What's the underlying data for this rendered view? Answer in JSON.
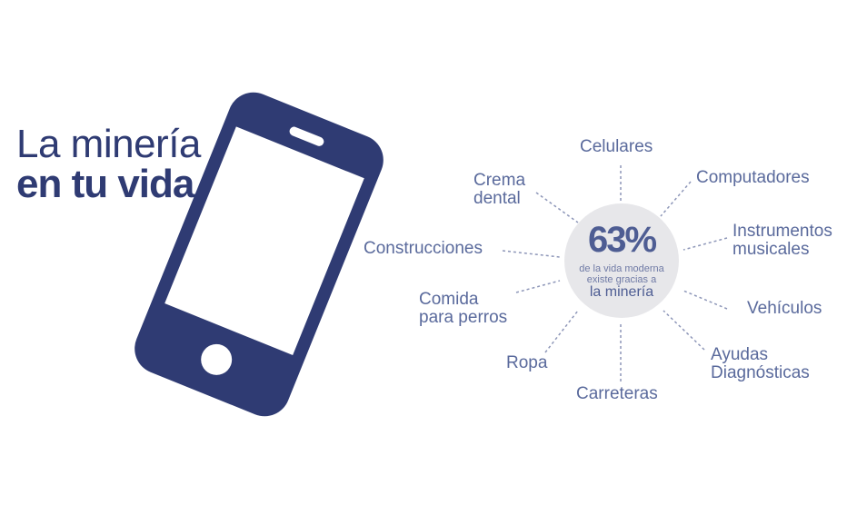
{
  "title": {
    "line1": "La minería",
    "line2": "en tu vida"
  },
  "center": {
    "percent": "63%",
    "line1": "de la vida moderna",
    "line2": "existe gracias a",
    "line3": "la minería"
  },
  "items": {
    "celulares": "Celulares",
    "computadores": "Computadores",
    "instrumentos_1": "Instrumentos",
    "instrumentos_2": "musicales",
    "vehiculos": "Vehículos",
    "ayudas_1": "Ayudas",
    "ayudas_2": "Diagnósticas",
    "carreteras": "Carreteras",
    "ropa": "Ropa",
    "comida_1": "Comida",
    "comida_2": "para perros",
    "construcciones": "Construcciones",
    "crema_1": "Crema",
    "crema_2": "dental"
  },
  "colors": {
    "navy": "#2f3b73",
    "label": "#5a6a9c",
    "circle": "#e7e7ea"
  }
}
